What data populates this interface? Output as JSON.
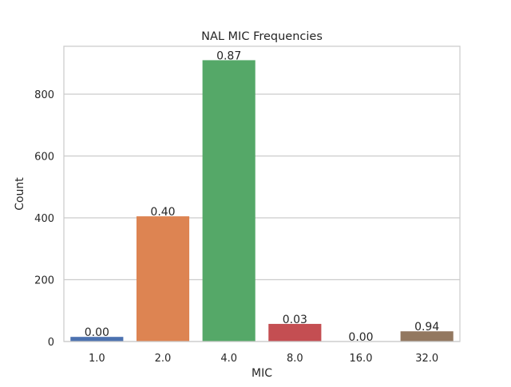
{
  "chart_data": {
    "type": "bar",
    "title": "NAL MIC Frequencies",
    "xlabel": "MIC",
    "ylabel": "Count",
    "categories": [
      "1.0",
      "2.0",
      "4.0",
      "8.0",
      "16.0",
      "32.0"
    ],
    "values": [
      15,
      405,
      910,
      57,
      0,
      33
    ],
    "bar_labels": [
      "0.00",
      "0.40",
      "0.87",
      "0.03",
      "0.00",
      "0.94"
    ],
    "colors": [
      "#4c72b0",
      "#dd8452",
      "#55a868",
      "#c44e52",
      "#8172b3",
      "#937860"
    ],
    "ylim": [
      0,
      955
    ],
    "yticks": [
      0,
      200,
      400,
      600,
      800
    ],
    "grid": true,
    "grid_axis": "y"
  }
}
